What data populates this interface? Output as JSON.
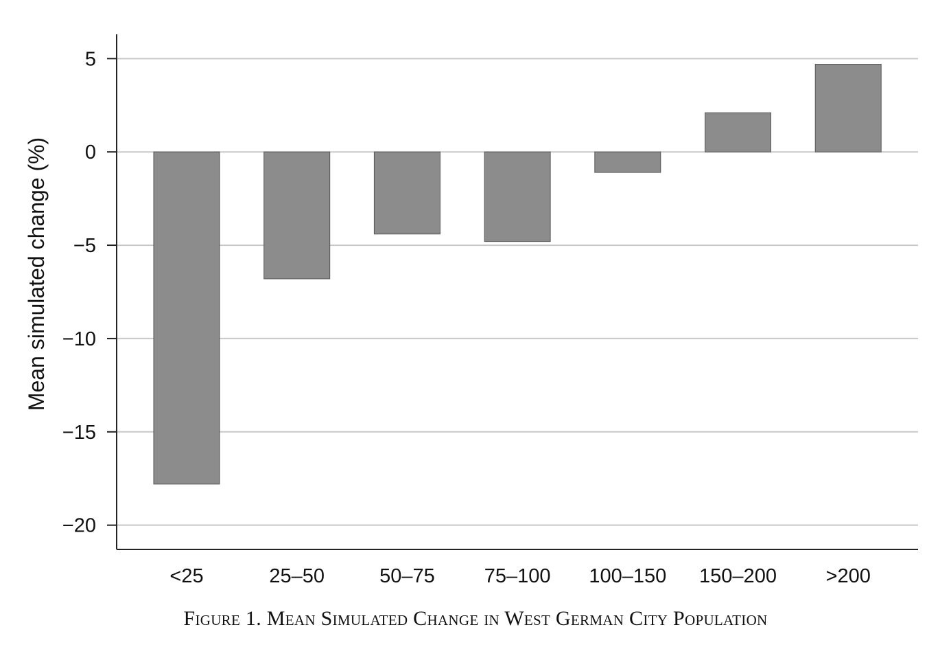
{
  "caption": "Figure 1. Mean Simulated Change in West German City Population",
  "chart_data": {
    "type": "bar",
    "title": "",
    "xlabel": "",
    "ylabel": "Mean simulated change (%)",
    "categories": [
      "<25",
      "25–50",
      "50–75",
      "75–100",
      "100–150",
      "150–200",
      ">200"
    ],
    "values": [
      -17.8,
      -6.8,
      -4.4,
      -4.8,
      -1.1,
      2.1,
      4.7
    ],
    "ylim": [
      -21.3,
      6.3
    ],
    "yticks": [
      5,
      0,
      -5,
      -10,
      -15,
      -20
    ],
    "ytick_labels": [
      "5",
      "0",
      "−5",
      "−10",
      "−15",
      "−20"
    ],
    "grid": true,
    "legend": "none",
    "colors": {
      "bar_fill": "#8c8c8c",
      "bar_stroke": "#555555",
      "grid": "#c8c8c8",
      "axis": "#222222"
    }
  }
}
